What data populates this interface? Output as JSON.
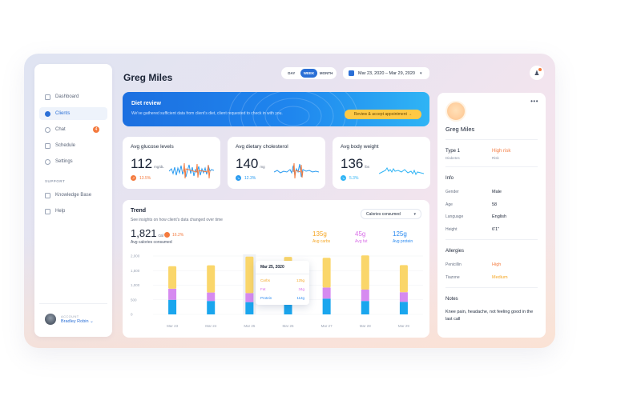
{
  "sidebar": {
    "items": [
      {
        "label": "Dashboard",
        "icon": "grid-icon",
        "active": false
      },
      {
        "label": "Clients",
        "icon": "users-icon",
        "active": true
      },
      {
        "label": "Chat",
        "icon": "chat-icon",
        "active": false,
        "badge": "4"
      },
      {
        "label": "Schedule",
        "icon": "calendar-icon",
        "active": false
      },
      {
        "label": "Settings",
        "icon": "gear-icon",
        "active": false
      }
    ],
    "support_label": "SUPPORT",
    "support_items": [
      {
        "label": "Knowledge Base",
        "icon": "book-icon"
      },
      {
        "label": "Help",
        "icon": "help-icon"
      }
    ],
    "account": {
      "label": "ACCOUNT",
      "name": "Bradley Robin ⌄"
    }
  },
  "header": {
    "title": "Greg Miles",
    "range_options": [
      "DAY",
      "WEEK",
      "MONTH"
    ],
    "range_selected": "WEEK",
    "date_range": "Mar 23, 2020 – Mar 29, 2020"
  },
  "review": {
    "title": "Diet review",
    "text": "We've gathered sufficient data from client's diet, client requested to check in with you.",
    "button": "Review & accept appointment  →"
  },
  "stats": [
    {
      "title": "Avg glucose levels",
      "value": "112",
      "unit": "mg/dL",
      "delta": "13.5%",
      "color": "#f47a3e",
      "line_color": "#2a9bf0"
    },
    {
      "title": "Avg dietary cholesterol",
      "value": "140",
      "unit": "mg",
      "delta": "12.3%",
      "color": "#2a9bf0",
      "line_color": "#2a9bf0"
    },
    {
      "title": "Avg body weight",
      "value": "136",
      "unit": "lbs",
      "delta": "5.3%",
      "color": "#2fb4f5",
      "line_color": "#2fb4f5"
    }
  ],
  "trend": {
    "title": "Trend",
    "subtitle": "See insights on how client's data changed over time",
    "dropdown": "Calories consumed",
    "big_value": "1,821",
    "big_unit": "cal",
    "delta": "16.2%",
    "big_label": "Avg calories consumed",
    "macros": [
      {
        "value": "135g",
        "label": "Avg carbs",
        "color": "#f5a623"
      },
      {
        "value": "45g",
        "label": "Avg fat",
        "color": "#d96ee8"
      },
      {
        "value": "125g",
        "label": "Avg protein",
        "color": "#2a8af0"
      }
    ],
    "tooltip": {
      "date": "Mar 25, 2020",
      "rows": [
        {
          "label": "Carbs",
          "value": "125g",
          "color": "#f5a623"
        },
        {
          "label": "Fat",
          "value": "34g",
          "color": "#d96ee8"
        },
        {
          "label": "Protein",
          "value": "112g",
          "color": "#2a8af0"
        }
      ]
    }
  },
  "chart_data": {
    "type": "bar",
    "stacked": true,
    "categories": [
      "Mar 23",
      "Mar 24",
      "Mar 25",
      "Mar 26",
      "Mar 27",
      "Mar 28",
      "Mar 29"
    ],
    "ylim": [
      0,
      2000
    ],
    "yticks": [
      "0",
      "500",
      "1,000",
      "1,500",
      "2,000"
    ],
    "series": [
      {
        "name": "Protein",
        "color": "#1aa6ee",
        "values": [
          500,
          460,
          420,
          600,
          540,
          460,
          430
        ]
      },
      {
        "name": "Fat",
        "color": "#d68af0",
        "values": [
          380,
          290,
          310,
          370,
          380,
          390,
          330
        ]
      },
      {
        "name": "Carbs",
        "color": "#fad66a",
        "values": [
          770,
          930,
          1250,
          1000,
          1020,
          1170,
          930
        ]
      }
    ],
    "highlight_index": 2
  },
  "profile": {
    "name": "Greg Miles",
    "type": "Type 1",
    "type_sub": "Diabetes",
    "risk": "High risk",
    "risk_sub": "Risk",
    "info_title": "Info",
    "info": [
      {
        "label": "Gender",
        "value": "Male"
      },
      {
        "label": "Age",
        "value": "58"
      },
      {
        "label": "Language",
        "value": "English"
      },
      {
        "label": "Height",
        "value": "6'1\""
      }
    ],
    "allergies_title": "Allergies",
    "allergies": [
      {
        "label": "Penicillin",
        "value": "High",
        "color": "#f47a3e"
      },
      {
        "label": "Tiazone",
        "value": "Medium",
        "color": "#f5a623"
      }
    ],
    "notes_title": "Notes",
    "notes": "Knee pain, headache, not feeling good in the last call"
  }
}
